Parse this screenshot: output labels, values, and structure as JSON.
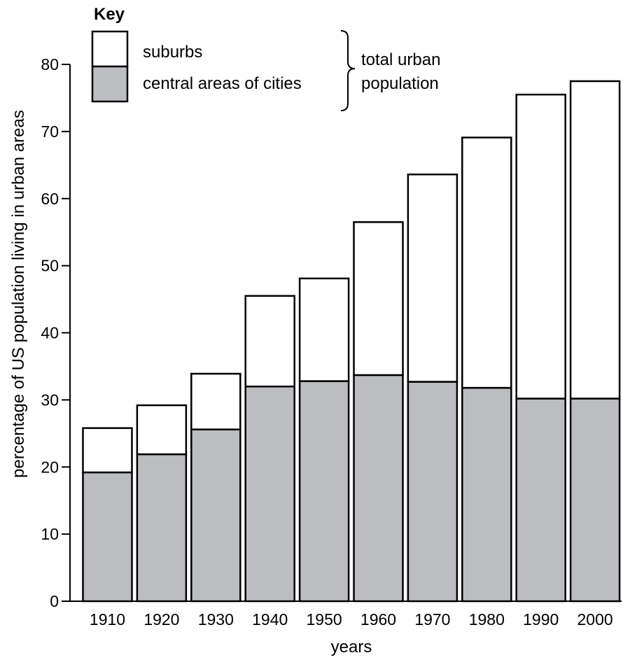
{
  "chart_data": {
    "type": "bar",
    "stacked": true,
    "categories": [
      "1910",
      "1920",
      "1930",
      "1940",
      "1950",
      "1960",
      "1970",
      "1980",
      "1990",
      "2000"
    ],
    "series": [
      {
        "name": "central areas of cities",
        "color": "#bcbdc1",
        "values": [
          19.2,
          21.9,
          25.6,
          32.0,
          32.8,
          33.7,
          32.7,
          31.8,
          30.2,
          30.2
        ]
      },
      {
        "name": "suburbs",
        "color": "#ffffff",
        "values": [
          6.6,
          7.3,
          8.3,
          13.5,
          15.3,
          22.8,
          30.9,
          37.3,
          45.3,
          47.3
        ]
      }
    ],
    "totals": [
      25.8,
      29.2,
      33.9,
      45.5,
      48.1,
      56.5,
      63.6,
      69.1,
      75.5,
      77.5
    ],
    "xlabel": "years",
    "ylabel": "percentage of US population living in urban areas",
    "ylim": [
      0,
      80
    ],
    "yticks": [
      0,
      10,
      20,
      30,
      40,
      50,
      60,
      70,
      80
    ],
    "grid": false,
    "legend": {
      "title": "Key",
      "placement": "top-left",
      "entries": [
        "suburbs",
        "central areas of cities"
      ],
      "bracket_label_line1": "total urban",
      "bracket_label_line2": "population"
    }
  }
}
